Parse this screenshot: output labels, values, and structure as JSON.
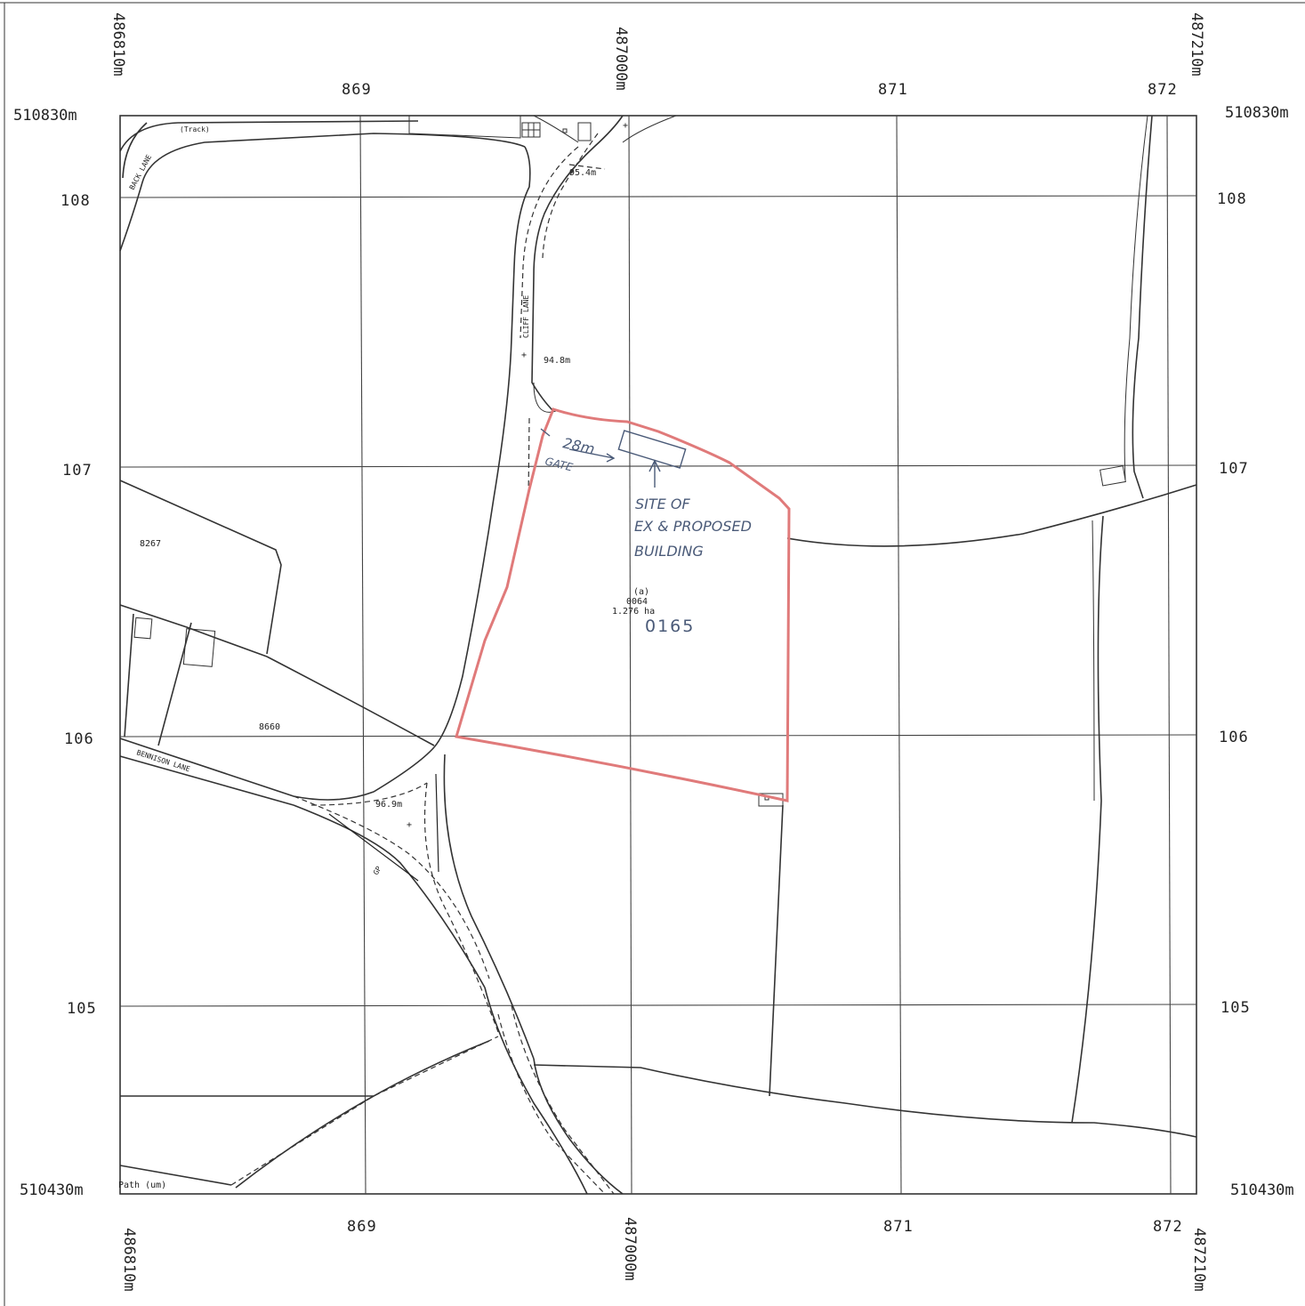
{
  "grid": {
    "easting_labels": [
      "869",
      "871",
      "872"
    ],
    "northing_labels": [
      "108",
      "107",
      "106",
      "105"
    ],
    "corner_easting_left": "486810m",
    "corner_easting_centre": "487000m",
    "corner_easting_right": "487210m",
    "corner_northing_top": "510830m",
    "corner_northing_bottom": "510430m"
  },
  "roads": {
    "back_lane": "BACK LANE",
    "track": "(Track)",
    "cliff_lane": "CLIFF LANE",
    "bennison_lane": "BENNISON LANE",
    "path": "Path (um)",
    "gp": "GP"
  },
  "spot_heights": [
    "95.4m",
    "94.8m",
    "96.9m"
  ],
  "parcels": {
    "p8267": "8267",
    "p8660": "8660",
    "site_ref": "(a)",
    "site_parcel": "0064",
    "site_area": "1.276 ha"
  },
  "annotations": {
    "distance": "28m",
    "gate": "GATE",
    "site_line1": "SITE OF",
    "site_line2": "EX & PROPOSED",
    "site_line3": "BUILDING",
    "handwritten_number": "0165"
  },
  "colors": {
    "site_boundary": "#e07a7a",
    "handwriting": "#4a5a78",
    "linework": "#333333"
  }
}
